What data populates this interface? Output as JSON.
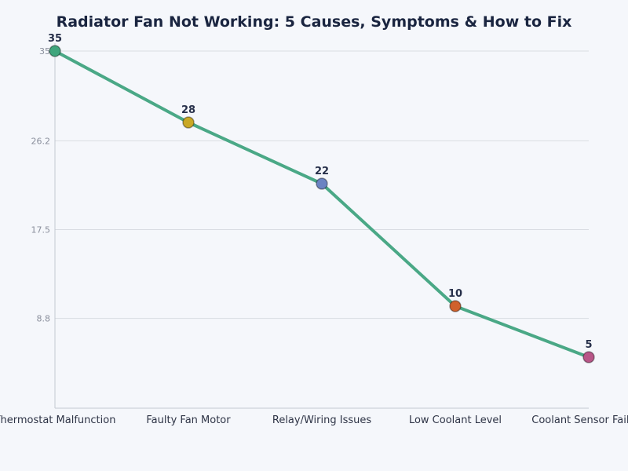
{
  "chart_data": {
    "type": "line",
    "title": "Radiator Fan Not Working: 5 Causes, Symptoms & How to Fix",
    "xlabel": "",
    "ylabel": "",
    "categories": [
      "Thermostat Malfunction",
      "Faulty Fan Motor",
      "Relay/Wiring Issues",
      "Low Coolant Level",
      "Coolant Sensor Failure"
    ],
    "values": [
      35,
      28,
      22,
      10,
      5
    ],
    "ylim": [
      0,
      35
    ],
    "yticks": [
      "8.8",
      "17.5",
      "26.2",
      "35"
    ],
    "grid": true,
    "legend": "none",
    "line_color": "#4aa886",
    "point_colors": [
      "#3fa57c",
      "#c9a825",
      "#6b83c2",
      "#d0612b",
      "#b85688"
    ]
  }
}
